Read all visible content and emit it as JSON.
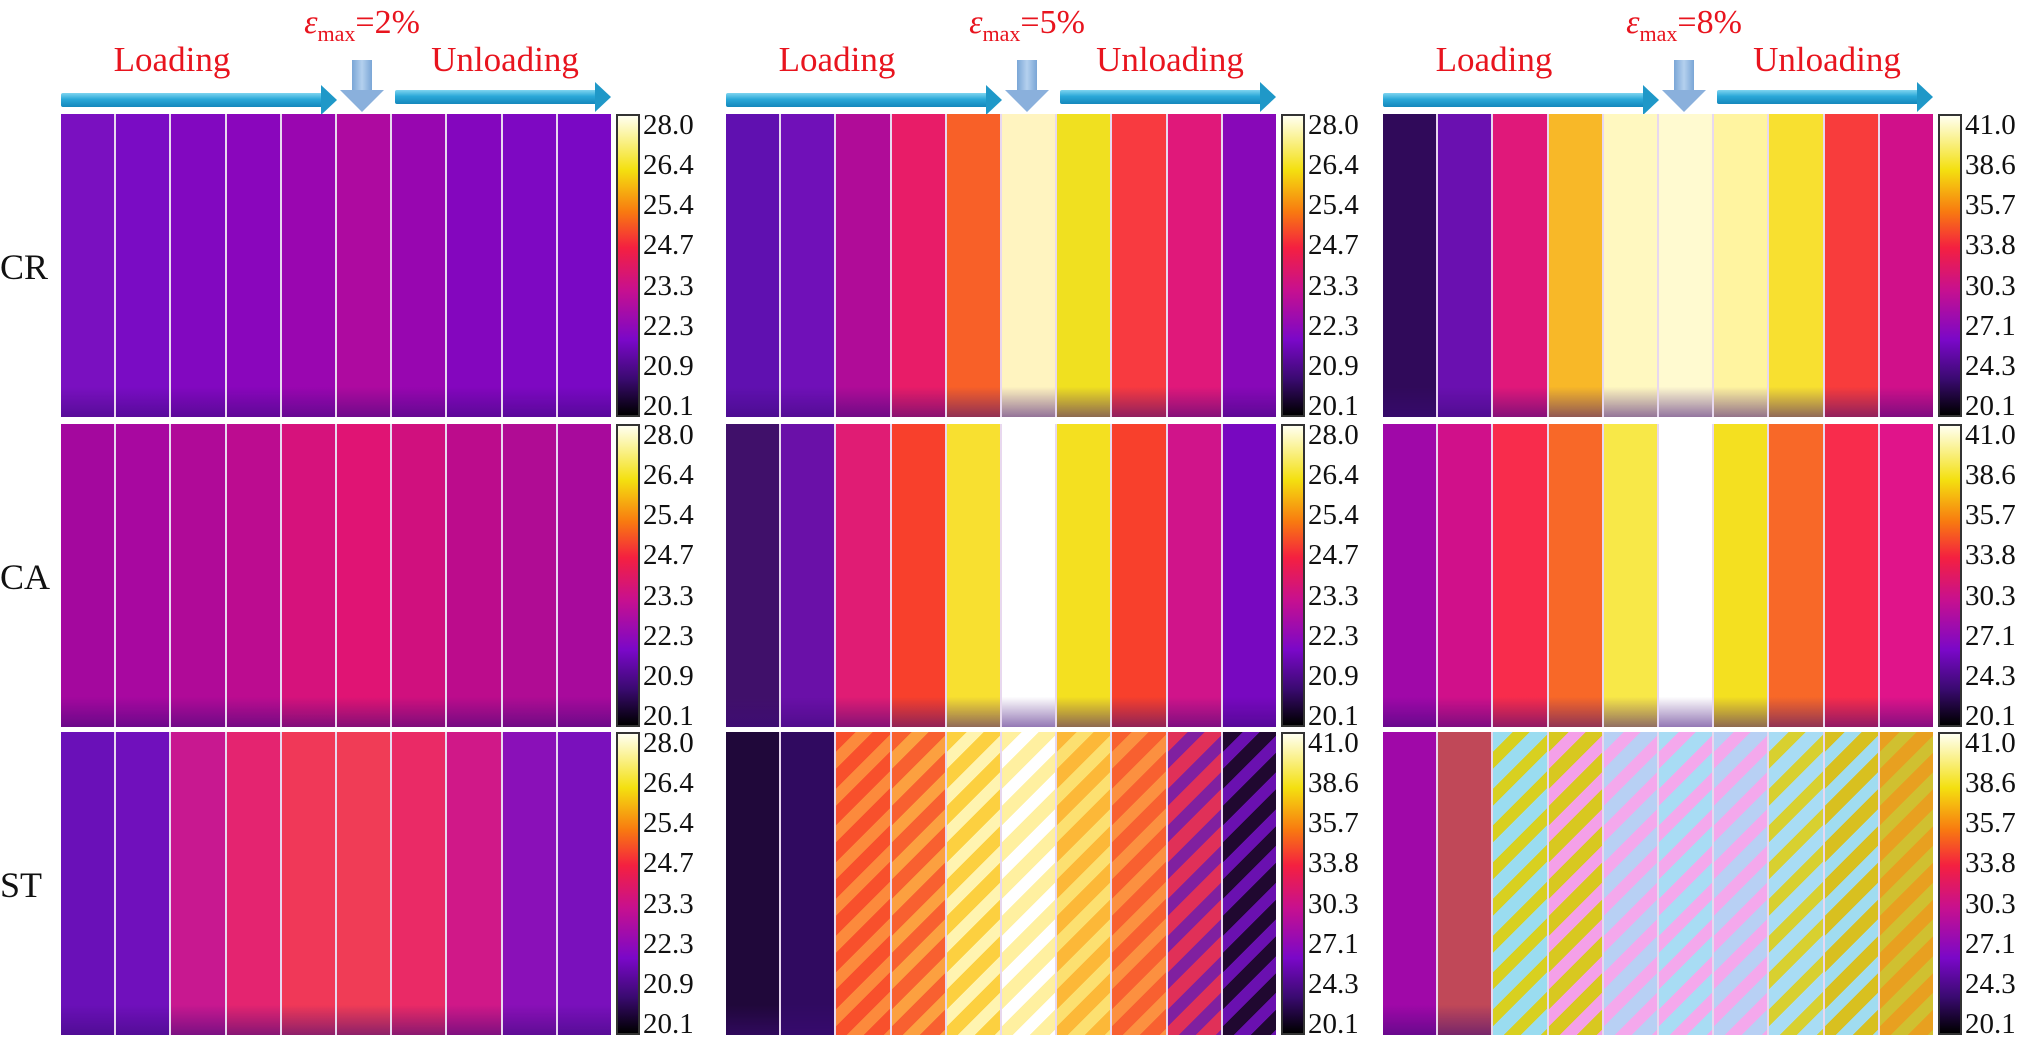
{
  "row_labels": [
    "CR",
    "CA",
    "ST"
  ],
  "phase_labels": {
    "loading": "Loading",
    "unloading": "Unloading"
  },
  "colors": {
    "label_red": "#e8141e",
    "arrow_cyan": "#2aa8d8",
    "down_arrow_blue": "#8ab0dc"
  },
  "scales": {
    "low": [
      "28.0",
      "26.4",
      "25.4",
      "24.7",
      "23.3",
      "22.3",
      "20.9",
      "20.1"
    ],
    "high": [
      "41.0",
      "38.6",
      "35.7",
      "33.8",
      "30.3",
      "27.1",
      "24.3",
      "20.1"
    ]
  },
  "panels": [
    {
      "symbol": "ε",
      "subscript": "max",
      "value": "=2%",
      "rows": [
        {
          "scale": "low",
          "strips": [
            "#7a10c0",
            "#7a0cc4",
            "#8208c0",
            "#8a06bc",
            "#9a06b0",
            "#ae0aa0",
            "#9806b0",
            "#8406be",
            "#7e08c2",
            "#7a08c4"
          ]
        },
        {
          "scale": "low",
          "strips": [
            "#a4089e",
            "#a808a0",
            "#b00a98",
            "#bc0c90",
            "#d6127c",
            "#e01474",
            "#d0107e",
            "#bc0c8c",
            "#b00c94",
            "#a80a9c"
          ]
        },
        {
          "scale": "low",
          "strips": [
            "#6a10b8",
            "#7010bc",
            "#c81890",
            "#e42470",
            "#f03858",
            "#f03c56",
            "#ea2a66",
            "#d01888",
            "#8a10b8",
            "#7a10bc"
          ]
        }
      ]
    },
    {
      "symbol": "ε",
      "subscript": "max",
      "value": "=5%",
      "rows": [
        {
          "scale": "low",
          "strips": [
            "#6010b0",
            "#7010b8",
            "#b00c98",
            "#e81c68",
            "#f86028",
            "#fff4c0",
            "#f0e020",
            "#f83a40",
            "#e0187a",
            "#8808b8"
          ]
        },
        {
          "scale": "low",
          "strips": [
            "#40106a",
            "#6a10a8",
            "#e01c74",
            "#f8402c",
            "#f8e030",
            "#ffffff",
            "#f4e020",
            "#f8402c",
            "#d0148a",
            "#7808c0"
          ]
        },
        {
          "scale": "high",
          "strips": [
            "#20083a",
            "#300a60",
            [
              "#f8502c",
              "#fc8a3c"
            ],
            [
              "#f86030",
              "#fca040"
            ],
            [
              "#fcd040",
              "#fff4b0"
            ],
            [
              "#fff0a0",
              "#ffffff"
            ],
            [
              "#fcb838",
              "#fce070"
            ],
            [
              "#f86030",
              "#fc9040"
            ],
            [
              "#e03058",
              "#8020a0"
            ],
            [
              "#200830",
              "#6a10b0"
            ]
          ]
        }
      ]
    },
    {
      "symbol": "ε",
      "subscript": "max",
      "value": "=8%",
      "rows": [
        {
          "scale": "high",
          "strips": [
            "#300a5a",
            "#6a10b0",
            "#e0187a",
            "#f8b828",
            "#fff8c0",
            "#fffad0",
            "#fff4a0",
            "#f8e030",
            "#f83c3c",
            "#d0108a"
          ]
        },
        {
          "scale": "high",
          "strips": [
            "#a008a8",
            "#d0108a",
            "#f82c4c",
            "#f86828",
            "#f8e848",
            "#ffffff",
            "#f4e020",
            "#f86828",
            "#f82c4c",
            "#e0148a"
          ]
        },
        {
          "scale": "high",
          "strips": [
            "#a008a8",
            "#c04858",
            [
              "#9adcf0",
              "#d8d020"
            ],
            [
              "#d8c820",
              "#f4a0e8"
            ],
            [
              "#b8d0f4",
              "#f4a8ec"
            ],
            [
              "#a8dcf4",
              "#f4a8ec"
            ],
            [
              "#b8d0f4",
              "#f4a8ec"
            ],
            [
              "#a8dcf4",
              "#d8d030"
            ],
            [
              "#d8c020",
              "#a0dcf0"
            ],
            [
              "#e8a020",
              "#d0c030"
            ]
          ]
        }
      ]
    }
  ]
}
